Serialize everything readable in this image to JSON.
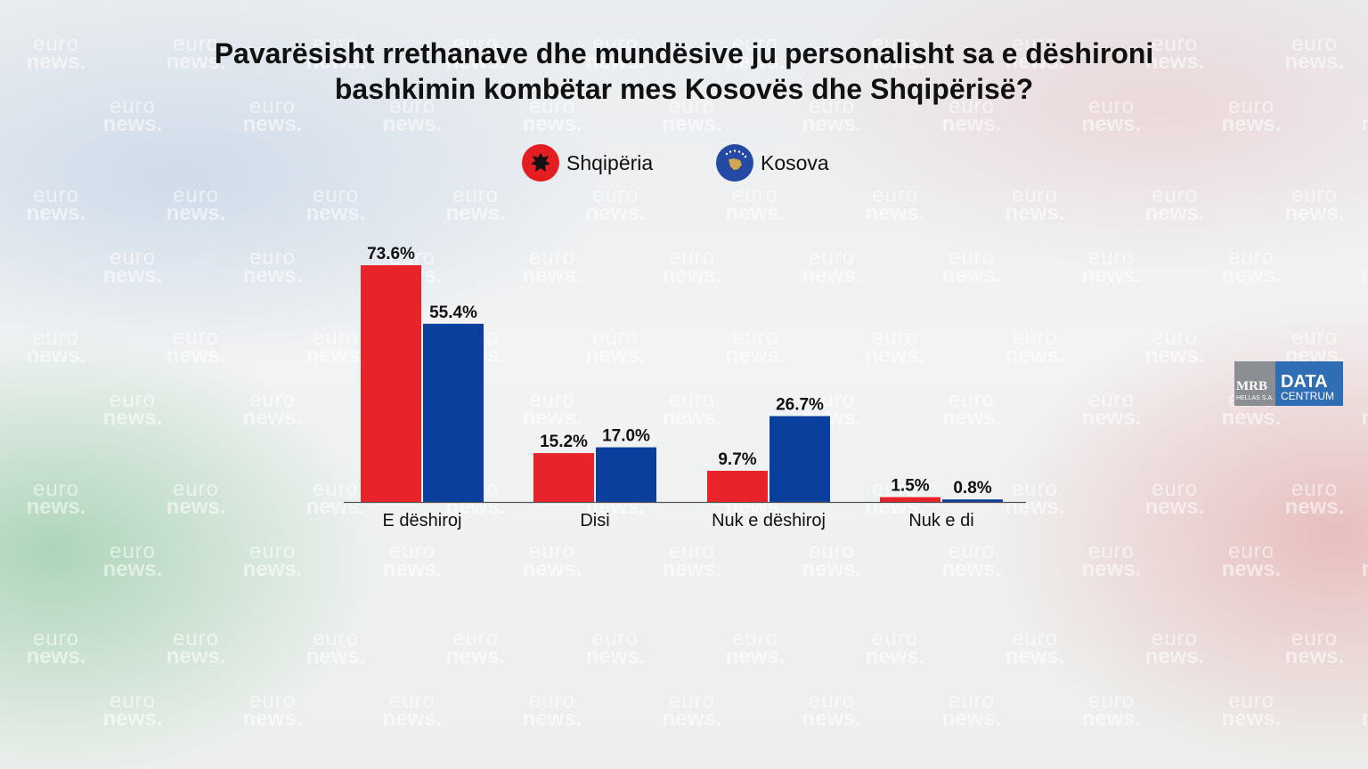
{
  "title_line1": "Pavarësisht rrethanave dhe mundësive ju personalisht sa e dëshironi",
  "title_line2": "bashkimin kombëtar mes Kosovës dhe Shqipërisë?",
  "watermark": {
    "line1": "euro",
    "line2": "news."
  },
  "logo": {
    "mrb": "MRB",
    "mrb_sub": "HELLAS S.A.",
    "data": "DATA",
    "centrum": "CENTRUM"
  },
  "legend": [
    {
      "label": "Shqipëria",
      "color": "#e8232a",
      "icon": "albania-flag-icon"
    },
    {
      "label": "Kosova",
      "color": "#0b3f9e",
      "icon": "kosovo-flag-icon"
    }
  ],
  "chart_data": {
    "type": "bar",
    "title": "Pavarësisht rrethanave dhe mundësive ju personalisht sa e dëshironi bashkimin kombëtar mes Kosovës dhe Shqipërisë?",
    "categories": [
      "E dëshiroj",
      "Disi",
      "Nuk e dëshiroj",
      "Nuk e di"
    ],
    "series": [
      {
        "name": "Shqipëria",
        "color": "#e8232a",
        "values": [
          73.6,
          15.2,
          9.7,
          1.5
        ],
        "labels": [
          "73.6%",
          "15.2%",
          "9.7%",
          "1.5%"
        ]
      },
      {
        "name": "Kosova",
        "color": "#0b3f9e",
        "values": [
          55.4,
          17.0,
          26.7,
          0.8
        ],
        "labels": [
          "55.4%",
          "17.0%",
          "26.7%",
          "0.8%"
        ]
      }
    ],
    "ylim": [
      0,
      73.6
    ],
    "grid": false,
    "legend_position": "top-center"
  }
}
